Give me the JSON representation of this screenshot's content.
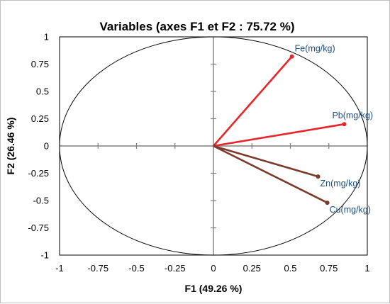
{
  "chart_data": {
    "type": "scatter",
    "subtype": "pca-correlation-circle",
    "title": "Variables (axes F1 et F2 : 75.72 %)",
    "xlabel": "F1 (49.26 %)",
    "ylabel": "F2 (26.46 %)",
    "xlim": [
      -1,
      1
    ],
    "ylim": [
      -1,
      1
    ],
    "x_ticks": [
      "-1",
      "-0.75",
      "-0.5",
      "-0.25",
      "0",
      "0.25",
      "0.5",
      "0.75",
      "1"
    ],
    "y_ticks": [
      "1",
      "0.75",
      "0.5",
      "0.25",
      "0",
      "-0.25",
      "-0.5",
      "-0.75",
      "-1"
    ],
    "unit_circle": true,
    "grid": false,
    "vectors": [
      {
        "name": "Fe(mg/kg)",
        "x": 0.51,
        "y": 0.82,
        "color": "#e8262a",
        "label_color": "#1f4e79"
      },
      {
        "name": "Pb(mg/kg)",
        "x": 0.85,
        "y": 0.2,
        "color": "#e8262a",
        "label_color": "#1f4e79"
      },
      {
        "name": "Zn(mg/kg)",
        "x": 0.68,
        "y": -0.28,
        "color": "#7b3a2b",
        "label_color": "#1f4e79"
      },
      {
        "name": "Cu(mg/kg)",
        "x": 0.74,
        "y": -0.52,
        "color": "#7b3a2b",
        "label_color": "#1f4e79"
      }
    ]
  }
}
